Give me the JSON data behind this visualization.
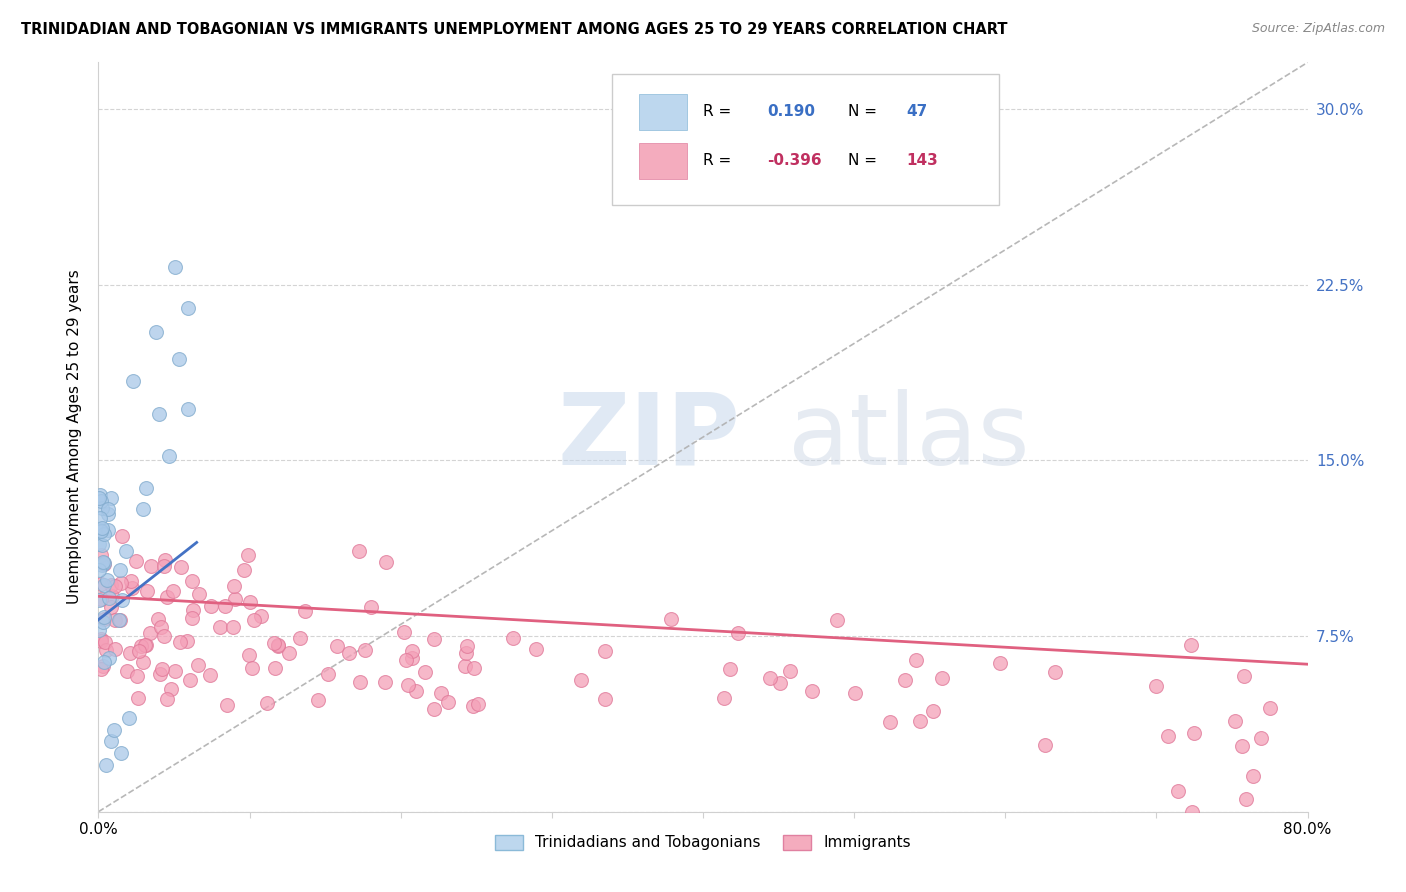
{
  "title": "TRINIDADIAN AND TOBAGONIAN VS IMMIGRANTS UNEMPLOYMENT AMONG AGES 25 TO 29 YEARS CORRELATION CHART",
  "source": "Source: ZipAtlas.com",
  "ylabel": "Unemployment Among Ages 25 to 29 years",
  "xlim": [
    0.0,
    0.8
  ],
  "ylim": [
    0.0,
    0.32
  ],
  "blue_R": 0.19,
  "blue_N": 47,
  "pink_R": -0.396,
  "pink_N": 143,
  "blue_color": "#A8C8E8",
  "pink_color": "#F4A0B8",
  "blue_edge": "#80AACC",
  "pink_edge": "#E07898",
  "blue_line_color": "#4472C4",
  "pink_line_color": "#E06080",
  "diagonal_color": "#B0B0B0",
  "background_color": "#FFFFFF",
  "grid_color": "#D0D0D0",
  "right_tick_color": "#4472C4"
}
